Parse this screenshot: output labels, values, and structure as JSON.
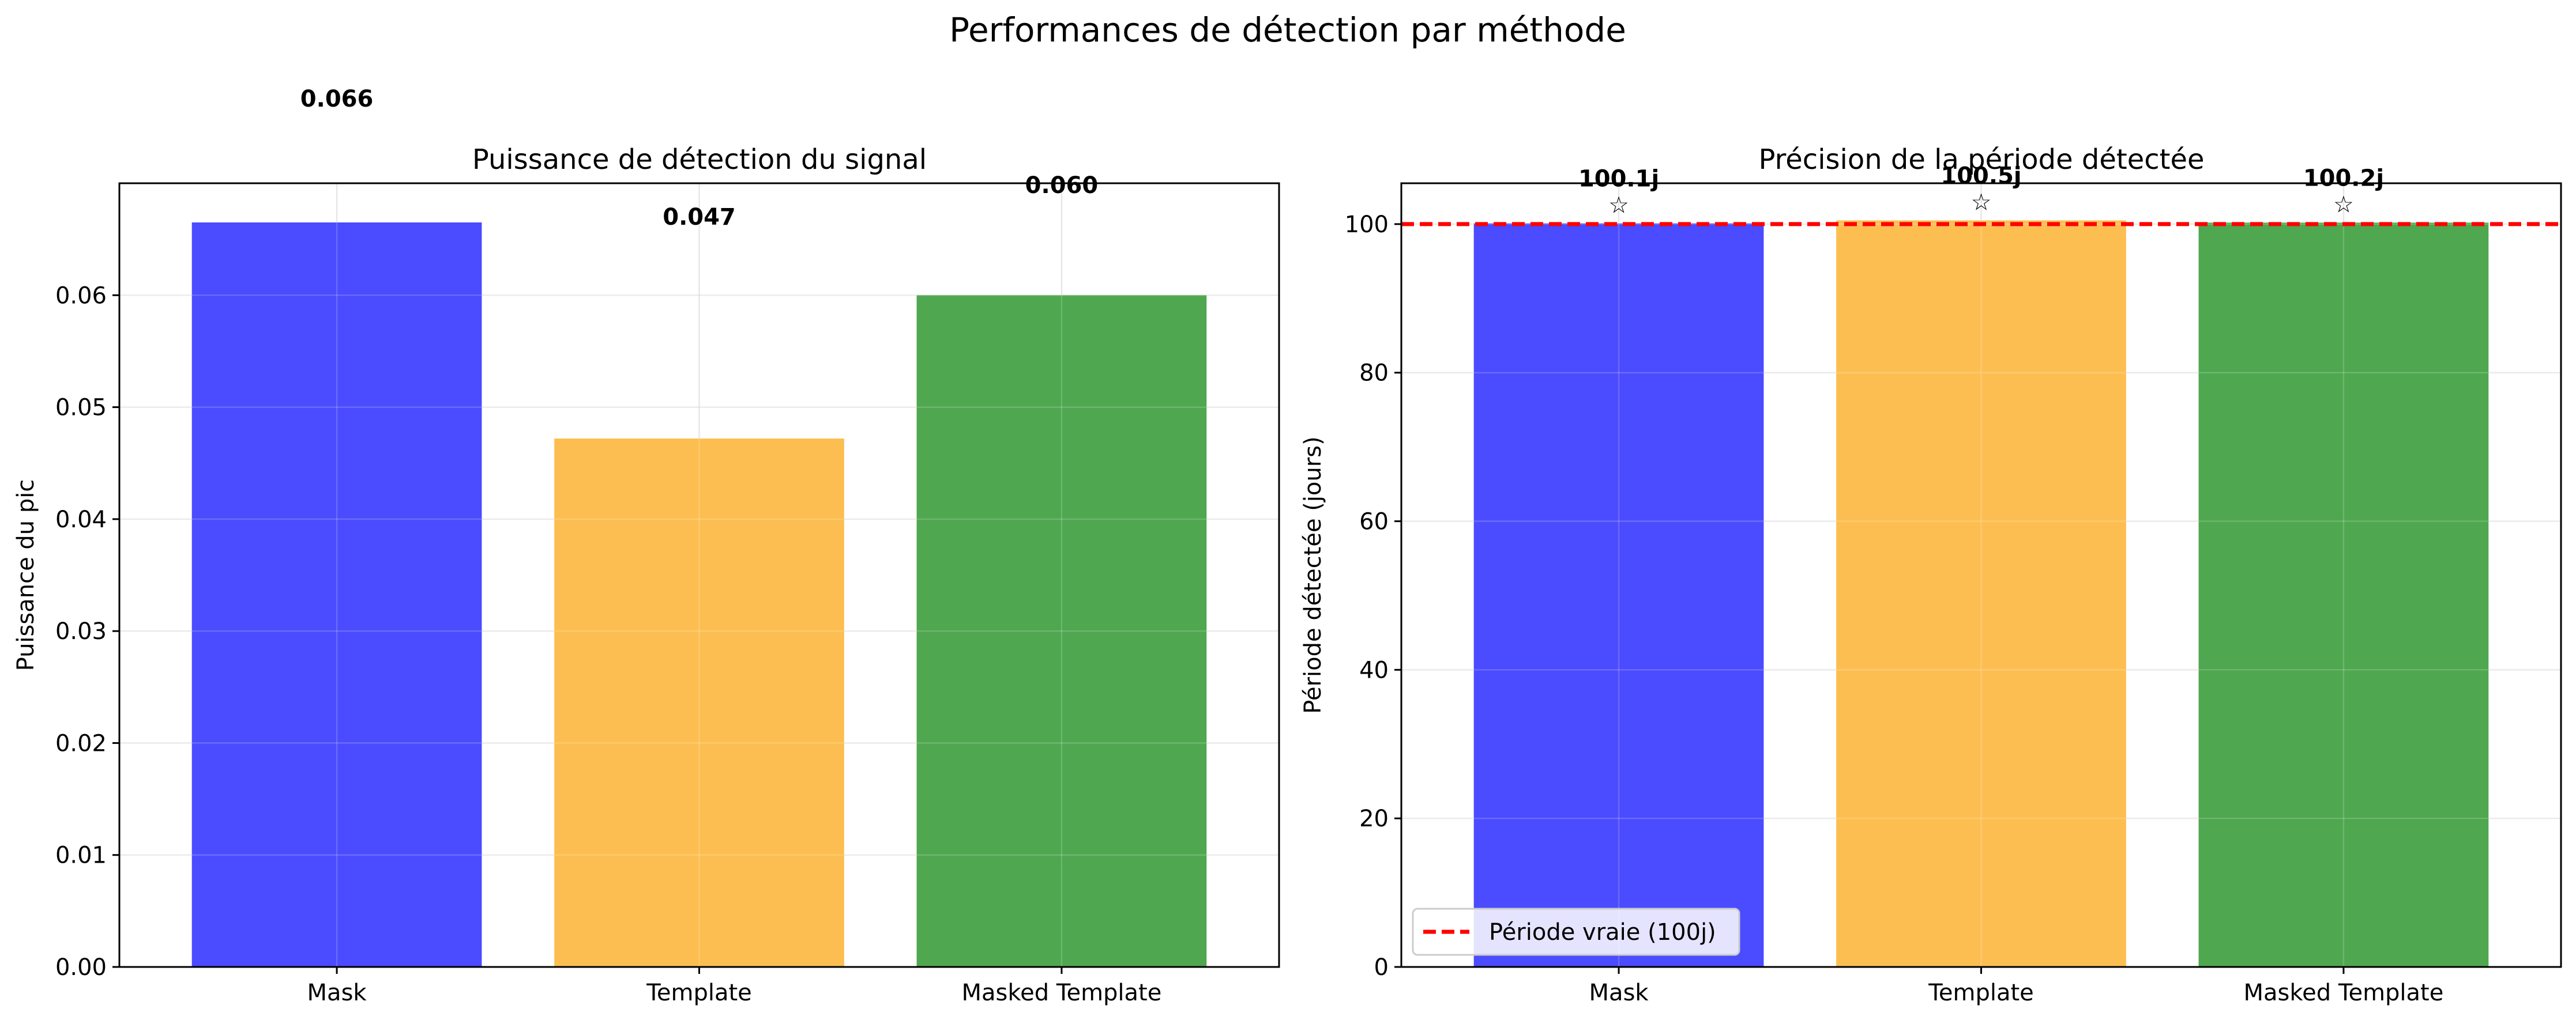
{
  "figure": {
    "suptitle": "Performances de détection par méthode"
  },
  "chart_data": [
    {
      "type": "bar",
      "title": "Puissance de détection du signal",
      "xlabel": "",
      "ylabel": "Puissance du pic",
      "categories": [
        "Mask",
        "Template",
        "Masked Template"
      ],
      "values": [
        0.0665,
        0.0472,
        0.06
      ],
      "value_labels": [
        "0.066",
        "0.047",
        "0.060"
      ],
      "colors": [
        "#4b4bff",
        "#fdbe51",
        "#4fa74f"
      ],
      "ylim": [
        0,
        0.07
      ],
      "yticks": [
        0.0,
        0.01,
        0.02,
        0.03,
        0.04,
        0.05,
        0.06
      ],
      "ytick_labels": [
        "0.00",
        "0.01",
        "0.02",
        "0.03",
        "0.04",
        "0.05",
        "0.06"
      ],
      "grid": true
    },
    {
      "type": "bar",
      "title": "Précision de la période détectée",
      "xlabel": "",
      "ylabel": "Période détectée (jours)",
      "categories": [
        "Mask",
        "Template",
        "Masked Template"
      ],
      "values": [
        100.1,
        100.5,
        100.2
      ],
      "value_labels": [
        "100.1j",
        "100.5j",
        "100.2j"
      ],
      "marker": "☆",
      "colors": [
        "#4b4bff",
        "#fdbe51",
        "#4fa74f"
      ],
      "ylim": [
        0,
        105.5
      ],
      "yticks": [
        0,
        20,
        40,
        60,
        80,
        100
      ],
      "ytick_labels": [
        "0",
        "20",
        "40",
        "60",
        "80",
        "100"
      ],
      "reference_line": {
        "value": 100,
        "label": "Période vraie (100j)",
        "color": "#ff0000"
      },
      "legend_position": "lower-left",
      "grid": true
    }
  ]
}
